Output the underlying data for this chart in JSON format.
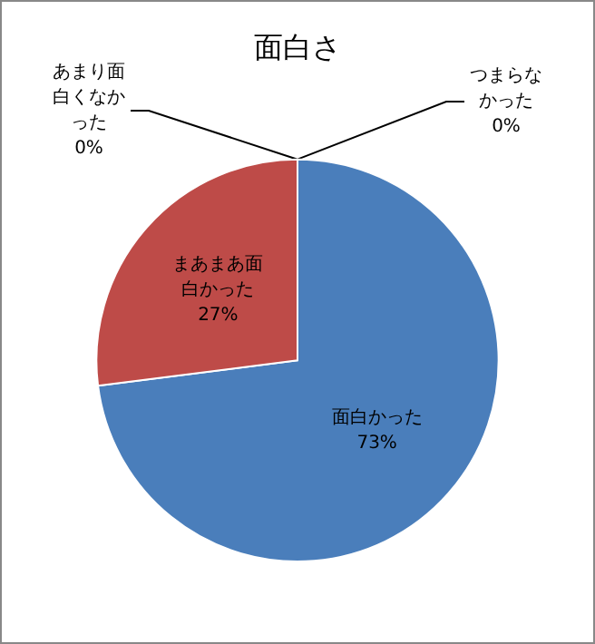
{
  "chart_data": {
    "type": "pie",
    "title": "面白さ",
    "categories": [
      "面白かった",
      "まあまあ面白かった",
      "あまり面白くなかった",
      "つまらなかった"
    ],
    "values": [
      73,
      27,
      0,
      0
    ],
    "colors": [
      "#4a7ebb",
      "#be4b48",
      "#98b954",
      "#7d60a0"
    ],
    "value_labels": [
      "73%",
      "27%",
      "0%",
      "0%"
    ],
    "legend": false
  }
}
